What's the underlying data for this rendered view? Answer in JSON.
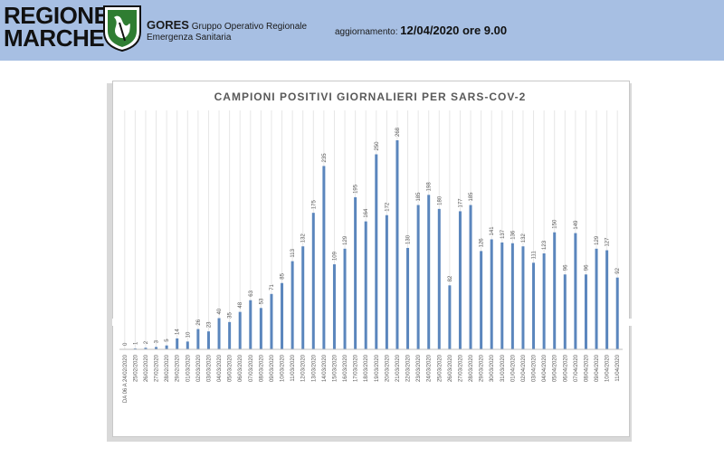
{
  "header": {
    "org_line1": "REGIONE",
    "org_line2": "MARCHE",
    "gores_acronym": "GORES",
    "gores_line1": "Gruppo Operativo Regionale",
    "gores_line2": "Emergenza Sanitaria",
    "update_label": "aggiornamento:",
    "update_value": "12/04/2020 ore 9.00",
    "background_color": "#a7bfe3"
  },
  "chart_data": {
    "type": "bar",
    "title": "CAMPIONI POSITIVI GIORNALIERI PER SARS-COV-2",
    "xlabel": "",
    "ylabel": "",
    "ylim": [
      0,
      268
    ],
    "grid": true,
    "bar_color": "#5b86bd",
    "categories": [
      "DA 06 A 24/02/2020",
      "25/02/2020",
      "26/02/2020",
      "27/02/2020",
      "28/02/2020",
      "29/02/2020",
      "01/03/2020",
      "02/03/2020",
      "03/03/2020",
      "04/03/2020",
      "05/03/2020",
      "06/03/2020",
      "07/03/2020",
      "08/03/2020",
      "09/03/2020",
      "10/03/2020",
      "11/03/2020",
      "12/03/2020",
      "13/03/2020",
      "14/03/2020",
      "15/03/2020",
      "16/03/2020",
      "17/03/2020",
      "18/03/2020",
      "19/03/2020",
      "20/03/2020",
      "21/03/2020",
      "22/03/2020",
      "23/03/2020",
      "24/03/2020",
      "25/03/2020",
      "26/03/2020",
      "27/03/2020",
      "28/03/2020",
      "29/03/2020",
      "30/03/2020",
      "31/03/2020",
      "01/04/2020",
      "02/04/2020",
      "03/04/2020",
      "04/04/2020",
      "05/04/2020",
      "06/04/2020",
      "07/04/2020",
      "08/04/2020",
      "09/04/2020",
      "10/04/2020",
      "11/04/2020"
    ],
    "values": [
      0,
      1,
      2,
      3,
      5,
      14,
      10,
      26,
      23,
      40,
      35,
      48,
      63,
      53,
      71,
      85,
      113,
      132,
      175,
      235,
      109,
      129,
      195,
      164,
      250,
      172,
      268,
      130,
      185,
      198,
      180,
      82,
      177,
      185,
      126,
      141,
      137,
      136,
      132,
      111,
      123,
      150,
      96,
      149,
      96,
      129,
      127,
      92
    ]
  }
}
